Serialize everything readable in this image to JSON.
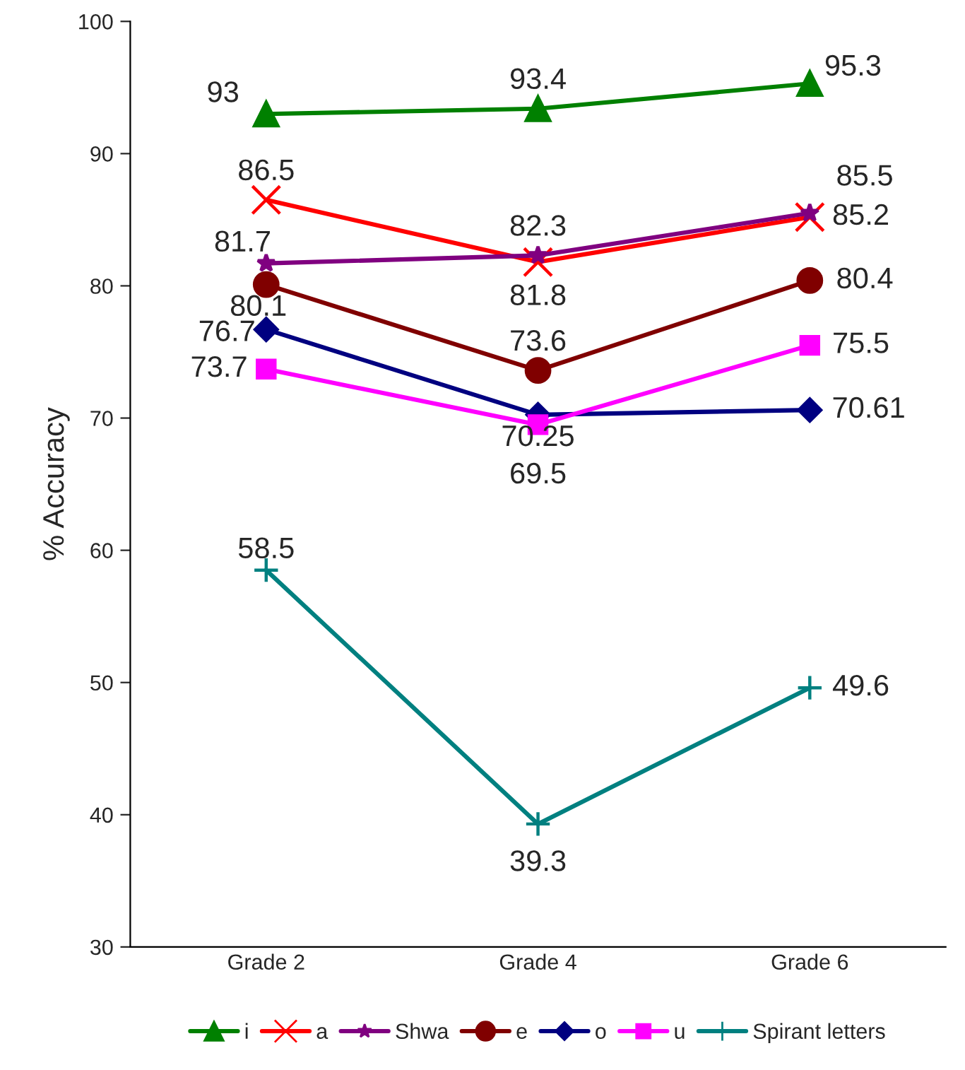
{
  "chart_data": {
    "type": "line",
    "ylabel": "% Accuracy",
    "categories": [
      "Grade 2",
      "Grade 4",
      "Grade 6"
    ],
    "ylim": [
      30,
      100
    ],
    "yticks": [
      30,
      40,
      50,
      60,
      70,
      80,
      90,
      100
    ],
    "grid": false,
    "legend": "bottom",
    "data_labels": true,
    "line_style": "solid",
    "series": [
      {
        "name": "i",
        "color": "#008000",
        "marker": "triangle",
        "values": [
          93,
          93.4,
          95.3
        ]
      },
      {
        "name": "a",
        "color": "#ff0000",
        "marker": "cross",
        "values": [
          86.5,
          81.8,
          85.2
        ]
      },
      {
        "name": "Shwa",
        "color": "#800080",
        "marker": "star",
        "values": [
          81.7,
          82.3,
          85.5
        ]
      },
      {
        "name": "e",
        "color": "#800000",
        "marker": "circle",
        "values": [
          80.1,
          73.6,
          80.4
        ]
      },
      {
        "name": "o",
        "color": "#000080",
        "marker": "diamond",
        "values": [
          76.7,
          70.25,
          70.61
        ]
      },
      {
        "name": "u",
        "color": "#ff00ff",
        "marker": "square",
        "values": [
          73.7,
          69.5,
          75.5
        ]
      },
      {
        "name": "Spirant letters",
        "color": "#008080",
        "marker": "plus",
        "values": [
          58.5,
          39.3,
          49.6
        ]
      }
    ]
  }
}
